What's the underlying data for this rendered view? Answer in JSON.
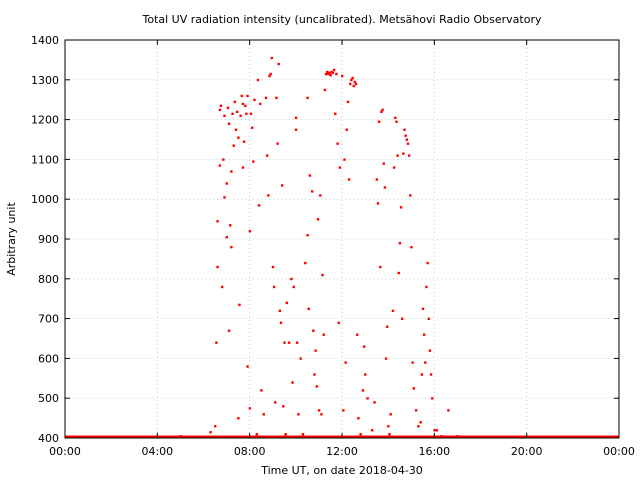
{
  "chart_data": {
    "type": "scatter",
    "title": "Total UV radiation intensity (uncalibrated). Metsähovi Radio Observatory",
    "xlabel": "Time UT, on date 2018-04-30",
    "ylabel": "Arbitrary unit",
    "xlim": [
      0,
      24
    ],
    "ylim": [
      400,
      1400
    ],
    "x_ticks": [
      0,
      4,
      8,
      12,
      16,
      20,
      24
    ],
    "x_tick_labels": [
      "00:00",
      "04:00",
      "08:00",
      "12:00",
      "16:00",
      "20:00",
      "00:00"
    ],
    "y_ticks": [
      400,
      500,
      600,
      700,
      800,
      900,
      1000,
      1100,
      1200,
      1300,
      1400
    ],
    "y_tick_labels": [
      "400",
      "500",
      "600",
      "700",
      "800",
      "900",
      "1000",
      "1100",
      "1200",
      "1300",
      "1400"
    ],
    "grid": true,
    "color": "#ff0000",
    "baseline": {
      "value": 400,
      "x_range": [
        0,
        24
      ]
    },
    "x_units": "hours UT",
    "points": [
      [
        5.0,
        405
      ],
      [
        6.3,
        415
      ],
      [
        6.5,
        430
      ],
      [
        6.55,
        640
      ],
      [
        6.6,
        830
      ],
      [
        6.6,
        945
      ],
      [
        6.7,
        1085
      ],
      [
        6.7,
        1225
      ],
      [
        6.75,
        1235
      ],
      [
        6.8,
        780
      ],
      [
        6.85,
        1100
      ],
      [
        6.9,
        1005
      ],
      [
        6.9,
        1210
      ],
      [
        7.0,
        905
      ],
      [
        7.0,
        1040
      ],
      [
        7.05,
        1230
      ],
      [
        7.1,
        670
      ],
      [
        7.1,
        1190
      ],
      [
        7.15,
        935
      ],
      [
        7.2,
        880
      ],
      [
        7.2,
        1070
      ],
      [
        7.25,
        1215
      ],
      [
        7.3,
        1135
      ],
      [
        7.35,
        1245
      ],
      [
        7.4,
        1175
      ],
      [
        7.45,
        1220
      ],
      [
        7.5,
        450
      ],
      [
        7.5,
        1155
      ],
      [
        7.55,
        735
      ],
      [
        7.6,
        1210
      ],
      [
        7.65,
        1260
      ],
      [
        7.7,
        1080
      ],
      [
        7.7,
        1240
      ],
      [
        7.75,
        1145
      ],
      [
        7.8,
        1235
      ],
      [
        7.85,
        1215
      ],
      [
        7.9,
        1260
      ],
      [
        7.9,
        580
      ],
      [
        8.0,
        475
      ],
      [
        8.0,
        920
      ],
      [
        8.05,
        1215
      ],
      [
        8.1,
        1180
      ],
      [
        8.15,
        1095
      ],
      [
        8.2,
        1250
      ],
      [
        8.3,
        410
      ],
      [
        8.35,
        1300
      ],
      [
        8.4,
        985
      ],
      [
        8.45,
        1240
      ],
      [
        8.5,
        520
      ],
      [
        8.6,
        460
      ],
      [
        8.7,
        1255
      ],
      [
        8.75,
        1110
      ],
      [
        8.8,
        1010
      ],
      [
        8.85,
        1310
      ],
      [
        8.9,
        1315
      ],
      [
        8.95,
        1355
      ],
      [
        9.0,
        830
      ],
      [
        9.05,
        780
      ],
      [
        9.1,
        490
      ],
      [
        9.15,
        1255
      ],
      [
        9.2,
        1140
      ],
      [
        9.25,
        1340
      ],
      [
        9.3,
        720
      ],
      [
        9.35,
        690
      ],
      [
        9.4,
        1035
      ],
      [
        9.45,
        480
      ],
      [
        9.5,
        640
      ],
      [
        9.55,
        410
      ],
      [
        9.6,
        740
      ],
      [
        9.7,
        640
      ],
      [
        9.8,
        800
      ],
      [
        9.85,
        540
      ],
      [
        9.9,
        780
      ],
      [
        10.0,
        1175
      ],
      [
        10.0,
        1205
      ],
      [
        10.05,
        640
      ],
      [
        10.1,
        460
      ],
      [
        10.2,
        600
      ],
      [
        10.3,
        410
      ],
      [
        10.4,
        840
      ],
      [
        10.5,
        1255
      ],
      [
        10.5,
        910
      ],
      [
        10.55,
        725
      ],
      [
        10.6,
        1060
      ],
      [
        10.7,
        1020
      ],
      [
        10.75,
        670
      ],
      [
        10.8,
        560
      ],
      [
        10.85,
        620
      ],
      [
        10.9,
        530
      ],
      [
        10.95,
        950
      ],
      [
        11.0,
        470
      ],
      [
        11.05,
        1010
      ],
      [
        11.1,
        460
      ],
      [
        11.15,
        810
      ],
      [
        11.2,
        660
      ],
      [
        11.25,
        1275
      ],
      [
        11.3,
        1315
      ],
      [
        11.35,
        1320
      ],
      [
        11.4,
        1315
      ],
      [
        11.45,
        1318
      ],
      [
        11.5,
        1312
      ],
      [
        11.55,
        1320
      ],
      [
        11.6,
        1318
      ],
      [
        11.65,
        1325
      ],
      [
        11.7,
        1215
      ],
      [
        11.75,
        1315
      ],
      [
        11.8,
        1140
      ],
      [
        11.85,
        690
      ],
      [
        11.9,
        1080
      ],
      [
        12.0,
        1310
      ],
      [
        12.05,
        470
      ],
      [
        12.1,
        1100
      ],
      [
        12.15,
        590
      ],
      [
        12.2,
        1175
      ],
      [
        12.25,
        1245
      ],
      [
        12.3,
        1050
      ],
      [
        12.35,
        1290
      ],
      [
        12.4,
        1300
      ],
      [
        12.45,
        1305
      ],
      [
        12.5,
        1285
      ],
      [
        12.55,
        1295
      ],
      [
        12.6,
        1290
      ],
      [
        12.65,
        660
      ],
      [
        12.7,
        450
      ],
      [
        12.8,
        410
      ],
      [
        12.9,
        520
      ],
      [
        12.95,
        630
      ],
      [
        13.0,
        560
      ],
      [
        13.1,
        500
      ],
      [
        13.3,
        420
      ],
      [
        13.4,
        490
      ],
      [
        13.5,
        1050
      ],
      [
        13.55,
        990
      ],
      [
        13.6,
        1195
      ],
      [
        13.65,
        830
      ],
      [
        13.7,
        1220
      ],
      [
        13.75,
        1225
      ],
      [
        13.8,
        1090
      ],
      [
        13.85,
        1030
      ],
      [
        13.9,
        600
      ],
      [
        13.95,
        680
      ],
      [
        14.0,
        430
      ],
      [
        14.05,
        410
      ],
      [
        14.1,
        460
      ],
      [
        14.2,
        720
      ],
      [
        14.25,
        1080
      ],
      [
        14.3,
        1205
      ],
      [
        14.35,
        1195
      ],
      [
        14.4,
        1110
      ],
      [
        14.45,
        815
      ],
      [
        14.5,
        890
      ],
      [
        14.55,
        980
      ],
      [
        14.6,
        700
      ],
      [
        14.65,
        1115
      ],
      [
        14.7,
        1175
      ],
      [
        14.75,
        1160
      ],
      [
        14.8,
        1150
      ],
      [
        14.85,
        1140
      ],
      [
        14.9,
        1110
      ],
      [
        14.95,
        1010
      ],
      [
        15.0,
        880
      ],
      [
        15.05,
        590
      ],
      [
        15.1,
        525
      ],
      [
        15.2,
        470
      ],
      [
        15.3,
        430
      ],
      [
        15.4,
        440
      ],
      [
        15.45,
        560
      ],
      [
        15.5,
        725
      ],
      [
        15.55,
        660
      ],
      [
        15.6,
        590
      ],
      [
        15.65,
        780
      ],
      [
        15.7,
        840
      ],
      [
        15.75,
        700
      ],
      [
        15.8,
        620
      ],
      [
        15.85,
        560
      ],
      [
        15.9,
        500
      ],
      [
        16.0,
        420
      ],
      [
        16.1,
        420
      ],
      [
        16.3,
        405
      ],
      [
        16.6,
        470
      ],
      [
        17.0,
        405
      ]
    ]
  }
}
